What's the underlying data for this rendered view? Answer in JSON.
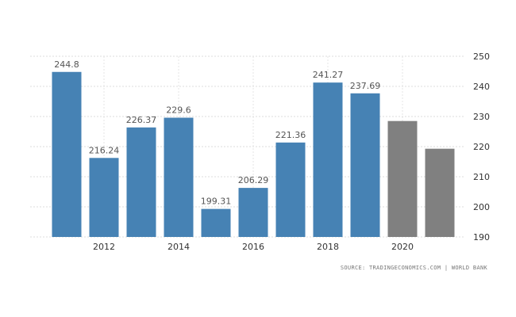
{
  "chart_data": {
    "type": "bar",
    "x": [
      2011,
      2012,
      2013,
      2014,
      2015,
      2016,
      2017,
      2018,
      2019,
      2020,
      2021
    ],
    "values": [
      244.8,
      216.24,
      226.37,
      229.6,
      199.31,
      206.29,
      221.36,
      241.27,
      237.69,
      228.5,
      219.3
    ],
    "data_labels": [
      "244.8",
      "216.24",
      "226.37",
      "229.6",
      "199.31",
      "206.29",
      "221.36",
      "241.27",
      "237.69",
      "",
      ""
    ],
    "kinds": [
      "actual",
      "actual",
      "actual",
      "actual",
      "actual",
      "actual",
      "actual",
      "actual",
      "actual",
      "forecast",
      "forecast"
    ],
    "x_tick_labels": [
      "2012",
      "2014",
      "2016",
      "2018",
      "2020"
    ],
    "x_tick_values": [
      2012,
      2014,
      2016,
      2018,
      2020
    ],
    "y_ticks": [
      190,
      200,
      210,
      220,
      230,
      240,
      250
    ],
    "ylim": [
      190,
      250
    ],
    "y_axis_side": "right",
    "grid": true,
    "colors": {
      "actual": "#4682b4",
      "forecast": "#808080"
    },
    "title": "",
    "xlabel": "",
    "ylabel": ""
  },
  "footer": {
    "source": "SOURCE: TRADINGECONOMICS.COM  |  WORLD BANK"
  }
}
